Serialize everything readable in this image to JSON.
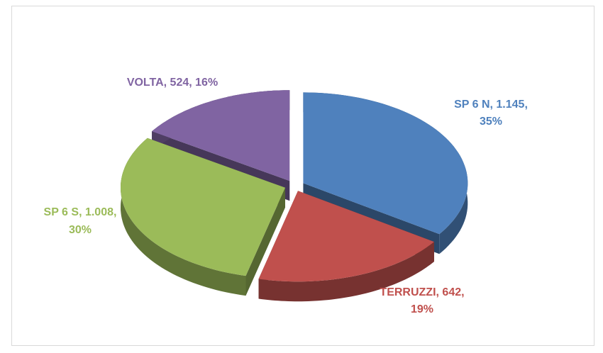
{
  "chart_data": {
    "type": "pie",
    "categories": [
      "SP 6 N",
      "TERRUZZI",
      "SP 6 S",
      "VOLTA"
    ],
    "values": [
      1145,
      642,
      1008,
      524
    ],
    "value_labels": [
      "1.145",
      "642",
      "1.008",
      "524"
    ],
    "percents": [
      35,
      19,
      30,
      16
    ],
    "percent_labels": [
      "35%",
      "19%",
      "30%",
      "16%"
    ],
    "label_separator": ", ",
    "colors": [
      "#4f81bd",
      "#c0504d",
      "#9bbb59",
      "#8064a2"
    ],
    "exploded": true,
    "three_d": true
  }
}
